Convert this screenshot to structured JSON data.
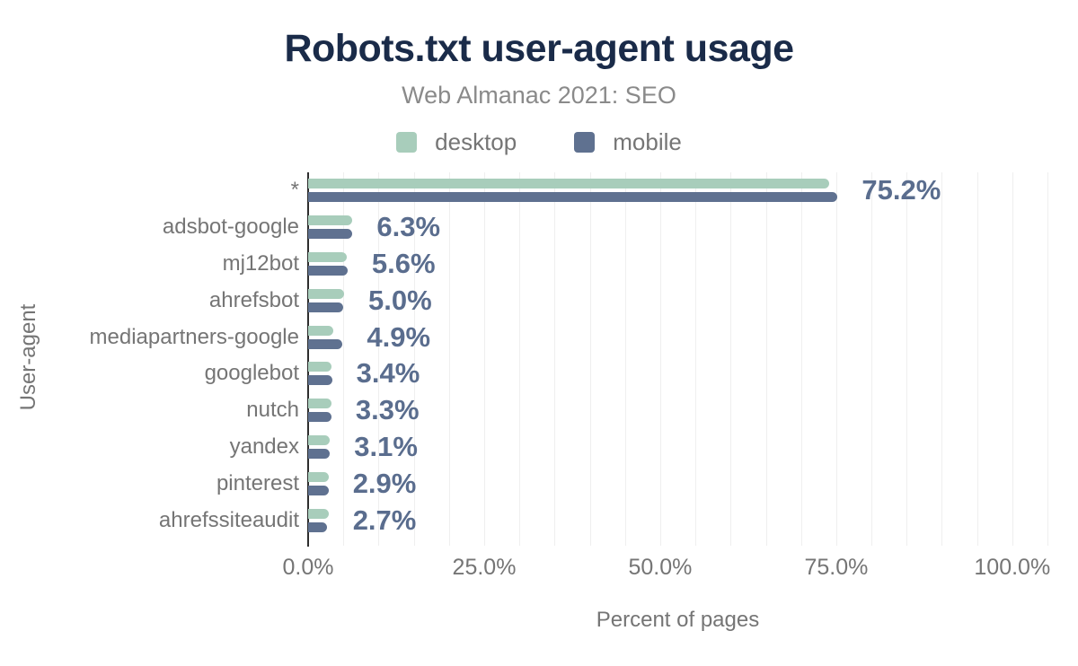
{
  "header": {
    "title": "Robots.txt user-agent usage",
    "subtitle": "Web Almanac 2021: SEO"
  },
  "legend": {
    "items": [
      {
        "label": "desktop",
        "color": "#a8cdbb"
      },
      {
        "label": "mobile",
        "color": "#5f7190"
      }
    ]
  },
  "axes": {
    "xlabel": "Percent of pages",
    "ylabel": "User-agent"
  },
  "chart_data": {
    "type": "bar",
    "orientation": "horizontal",
    "title": "Robots.txt user-agent usage",
    "subtitle": "Web Almanac 2021: SEO",
    "xlabel": "Percent of pages",
    "ylabel": "User-agent",
    "legend_position": "top",
    "grid": "minor-vertical-every-5pct",
    "xlim": [
      0,
      105
    ],
    "categories": [
      "*",
      "adsbot-google",
      "mj12bot",
      "ahrefsbot",
      "mediapartners-google",
      "googlebot",
      "nutch",
      "yandex",
      "pinterest",
      "ahrefssiteaudit"
    ],
    "series": [
      {
        "name": "desktop",
        "color": "#a8cdbb",
        "values": [
          74.0,
          6.2,
          5.5,
          5.1,
          3.6,
          3.3,
          3.3,
          3.0,
          2.9,
          2.9
        ]
      },
      {
        "name": "mobile",
        "color": "#5f7190",
        "values": [
          75.2,
          6.3,
          5.6,
          5.0,
          4.9,
          3.4,
          3.3,
          3.1,
          2.9,
          2.7
        ]
      }
    ],
    "value_labels": [
      "75.2%",
      "6.3%",
      "5.6%",
      "5.0%",
      "4.9%",
      "3.4%",
      "3.3%",
      "3.1%",
      "2.9%",
      "2.7%"
    ],
    "value_label_series": "mobile",
    "xticks": [
      {
        "value": 0,
        "label": "0.0%"
      },
      {
        "value": 25,
        "label": "25.0%"
      },
      {
        "value": 50,
        "label": "50.0%"
      },
      {
        "value": 75,
        "label": "75.0%"
      },
      {
        "value": 100,
        "label": "100.0%"
      }
    ]
  }
}
